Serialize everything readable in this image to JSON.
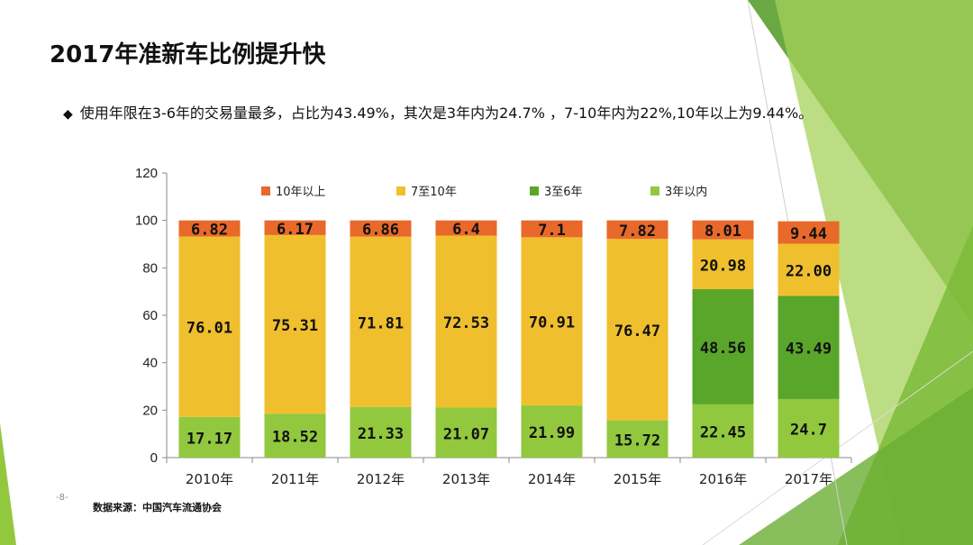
{
  "slide": {
    "title": "2017年准新车比例提升快",
    "bullet_symbol": "◆",
    "bullet_text": "使用年限在3-6年的交易量最多，占比为43.49%，其次是3年内为24.7% ，7-10年内为22%,10年以上为9.44%。",
    "page_number": "-8-",
    "source": "数据来源：中国汽车流通协会"
  },
  "colors": {
    "lt3": "#92c83e",
    "y3to6": "#59a62b",
    "y7to10": "#f0bf2e",
    "gt10": "#e8692a",
    "deco_dark": "#5a9e2f",
    "deco_light": "#a6d25a"
  },
  "chart_data": {
    "type": "bar",
    "stacked": true,
    "categories": [
      "2010年",
      "2011年",
      "2012年",
      "2013年",
      "2014年",
      "2015年",
      "2016年",
      "2017年"
    ],
    "ylim": [
      0,
      120
    ],
    "yticks": [
      "0",
      "20",
      "40",
      "60",
      "80",
      "100",
      "120"
    ],
    "legend_position": "top",
    "series": [
      {
        "name": "3年以内",
        "color_key": "lt3",
        "values": [
          17.17,
          18.52,
          21.33,
          21.07,
          21.99,
          15.72,
          22.45,
          24.7
        ],
        "labels": [
          "17.17",
          "18.52",
          "21.33",
          "21.07",
          "21.99",
          "15.72",
          "22.45",
          "24.7"
        ]
      },
      {
        "name": "3至6年",
        "color_key": "y3to6",
        "values": [
          0,
          0,
          0,
          0,
          0,
          0,
          48.56,
          43.49
        ],
        "labels": [
          "",
          "",
          "",
          "",
          "",
          "",
          "48.56",
          "43.49"
        ]
      },
      {
        "name": "7至10年",
        "color_key": "y7to10",
        "values": [
          76.01,
          75.31,
          71.81,
          72.53,
          70.91,
          76.47,
          20.98,
          22.0
        ],
        "labels": [
          "76.01",
          "75.31",
          "71.81",
          "72.53",
          "70.91",
          "76.47",
          "20.98",
          "22.00"
        ]
      },
      {
        "name": "10年以上",
        "color_key": "gt10",
        "values": [
          6.82,
          6.17,
          6.86,
          6.4,
          7.1,
          7.82,
          8.01,
          9.44
        ],
        "labels": [
          "6.82",
          "6.17",
          "6.86",
          "6.4",
          "7.1",
          "7.82",
          "8.01",
          "9.44"
        ]
      }
    ],
    "legend_order": [
      3,
      2,
      1,
      0
    ]
  }
}
